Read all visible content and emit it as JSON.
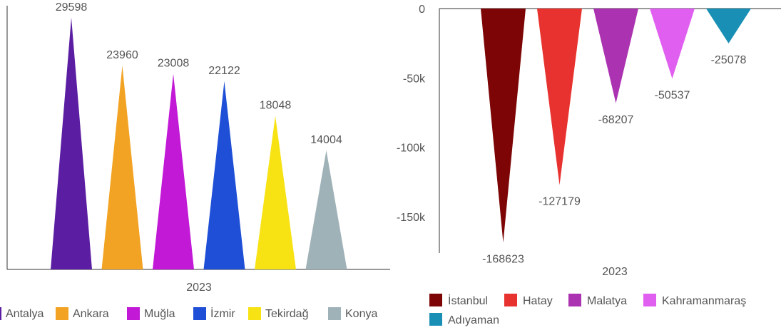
{
  "chart_data": [
    {
      "type": "bar",
      "shape": "triangle",
      "categories": [
        "2023"
      ],
      "series": [
        {
          "name": "Antalya",
          "values": [
            29598
          ],
          "color": "#5b1ea3"
        },
        {
          "name": "Ankara",
          "values": [
            23960
          ],
          "color": "#f2a324"
        },
        {
          "name": "Muğla",
          "values": [
            23008
          ],
          "color": "#c219d6"
        },
        {
          "name": "İzmir",
          "values": [
            22122
          ],
          "color": "#1e4fd6"
        },
        {
          "name": "Tekirdağ",
          "values": [
            18048
          ],
          "color": "#f7e214"
        },
        {
          "name": "Konya",
          "values": [
            14004
          ],
          "color": "#9fb2b8"
        }
      ],
      "ylim": [
        0,
        30000
      ],
      "xlabel": "",
      "ylabel": "",
      "legend": "bottom"
    },
    {
      "type": "bar",
      "shape": "triangle",
      "categories": [
        "2023"
      ],
      "series": [
        {
          "name": "İstanbul",
          "values": [
            -168623
          ],
          "color": "#7d0505"
        },
        {
          "name": "Hatay",
          "values": [
            -127179
          ],
          "color": "#e8322f"
        },
        {
          "name": "Malatya",
          "values": [
            -68207
          ],
          "color": "#ab32b0"
        },
        {
          "name": "Kahramanmaraş",
          "values": [
            -50537
          ],
          "color": "#e05ff0"
        },
        {
          "name": "Adıyaman",
          "values": [
            -25078
          ],
          "color": "#1a8fb5"
        }
      ],
      "ylim": [
        -175000,
        0
      ],
      "yticks": [
        0,
        -50000,
        -100000,
        -150000
      ],
      "ytick_labels": [
        "0",
        "-50k",
        "-100k",
        "-150k"
      ],
      "xlabel": "",
      "ylabel": "",
      "legend": "bottom"
    }
  ]
}
